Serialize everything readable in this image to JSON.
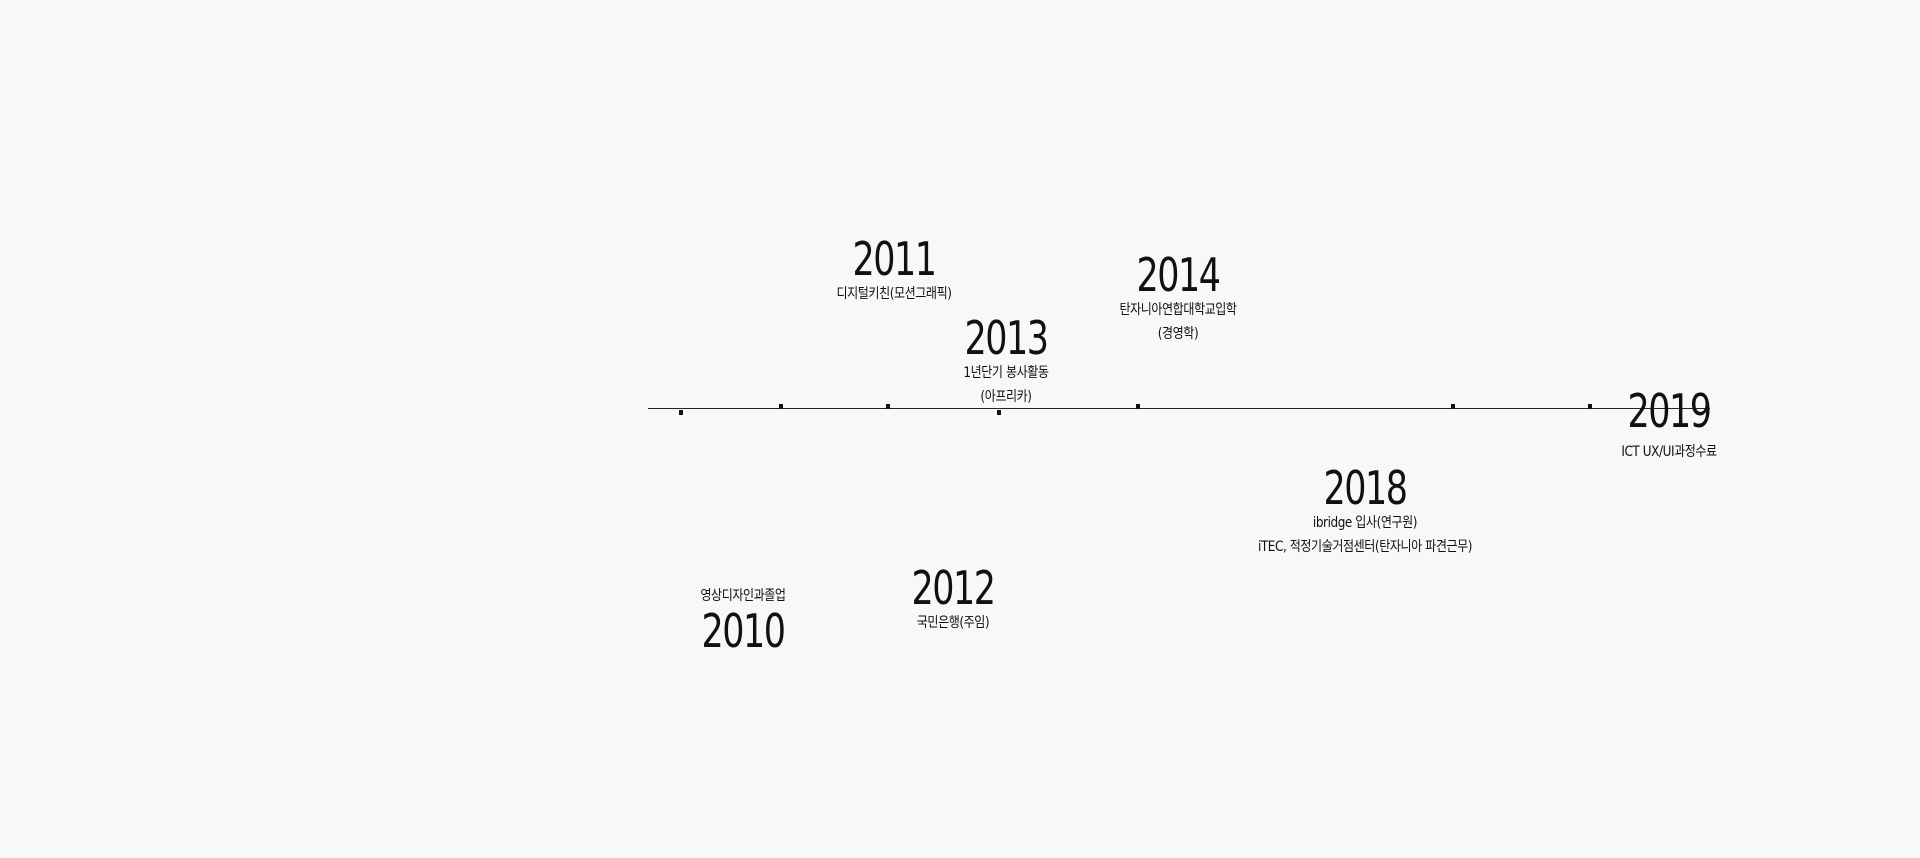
{
  "timeline": {
    "events": [
      {
        "year": "2010",
        "lines": [
          "영상디자인과졸업"
        ]
      },
      {
        "year": "2011",
        "lines": [
          "디지털키친(모션그래픽)"
        ]
      },
      {
        "year": "2012",
        "lines": [
          "국민은행(주임)"
        ]
      },
      {
        "year": "2013",
        "lines": [
          "1년단기 봉사활동",
          "(아프리카)"
        ]
      },
      {
        "year": "2014",
        "lines": [
          "탄자니아연합대학교입학",
          "(경영학)"
        ]
      },
      {
        "year": "2018",
        "lines": [
          "ibridge 입사(연구원)",
          "iTEC, 적정기술거점센터(탄자니아 파견근무)"
        ]
      },
      {
        "year": "2019",
        "lines": [
          "ICT UX/UI과정수료"
        ]
      }
    ]
  }
}
